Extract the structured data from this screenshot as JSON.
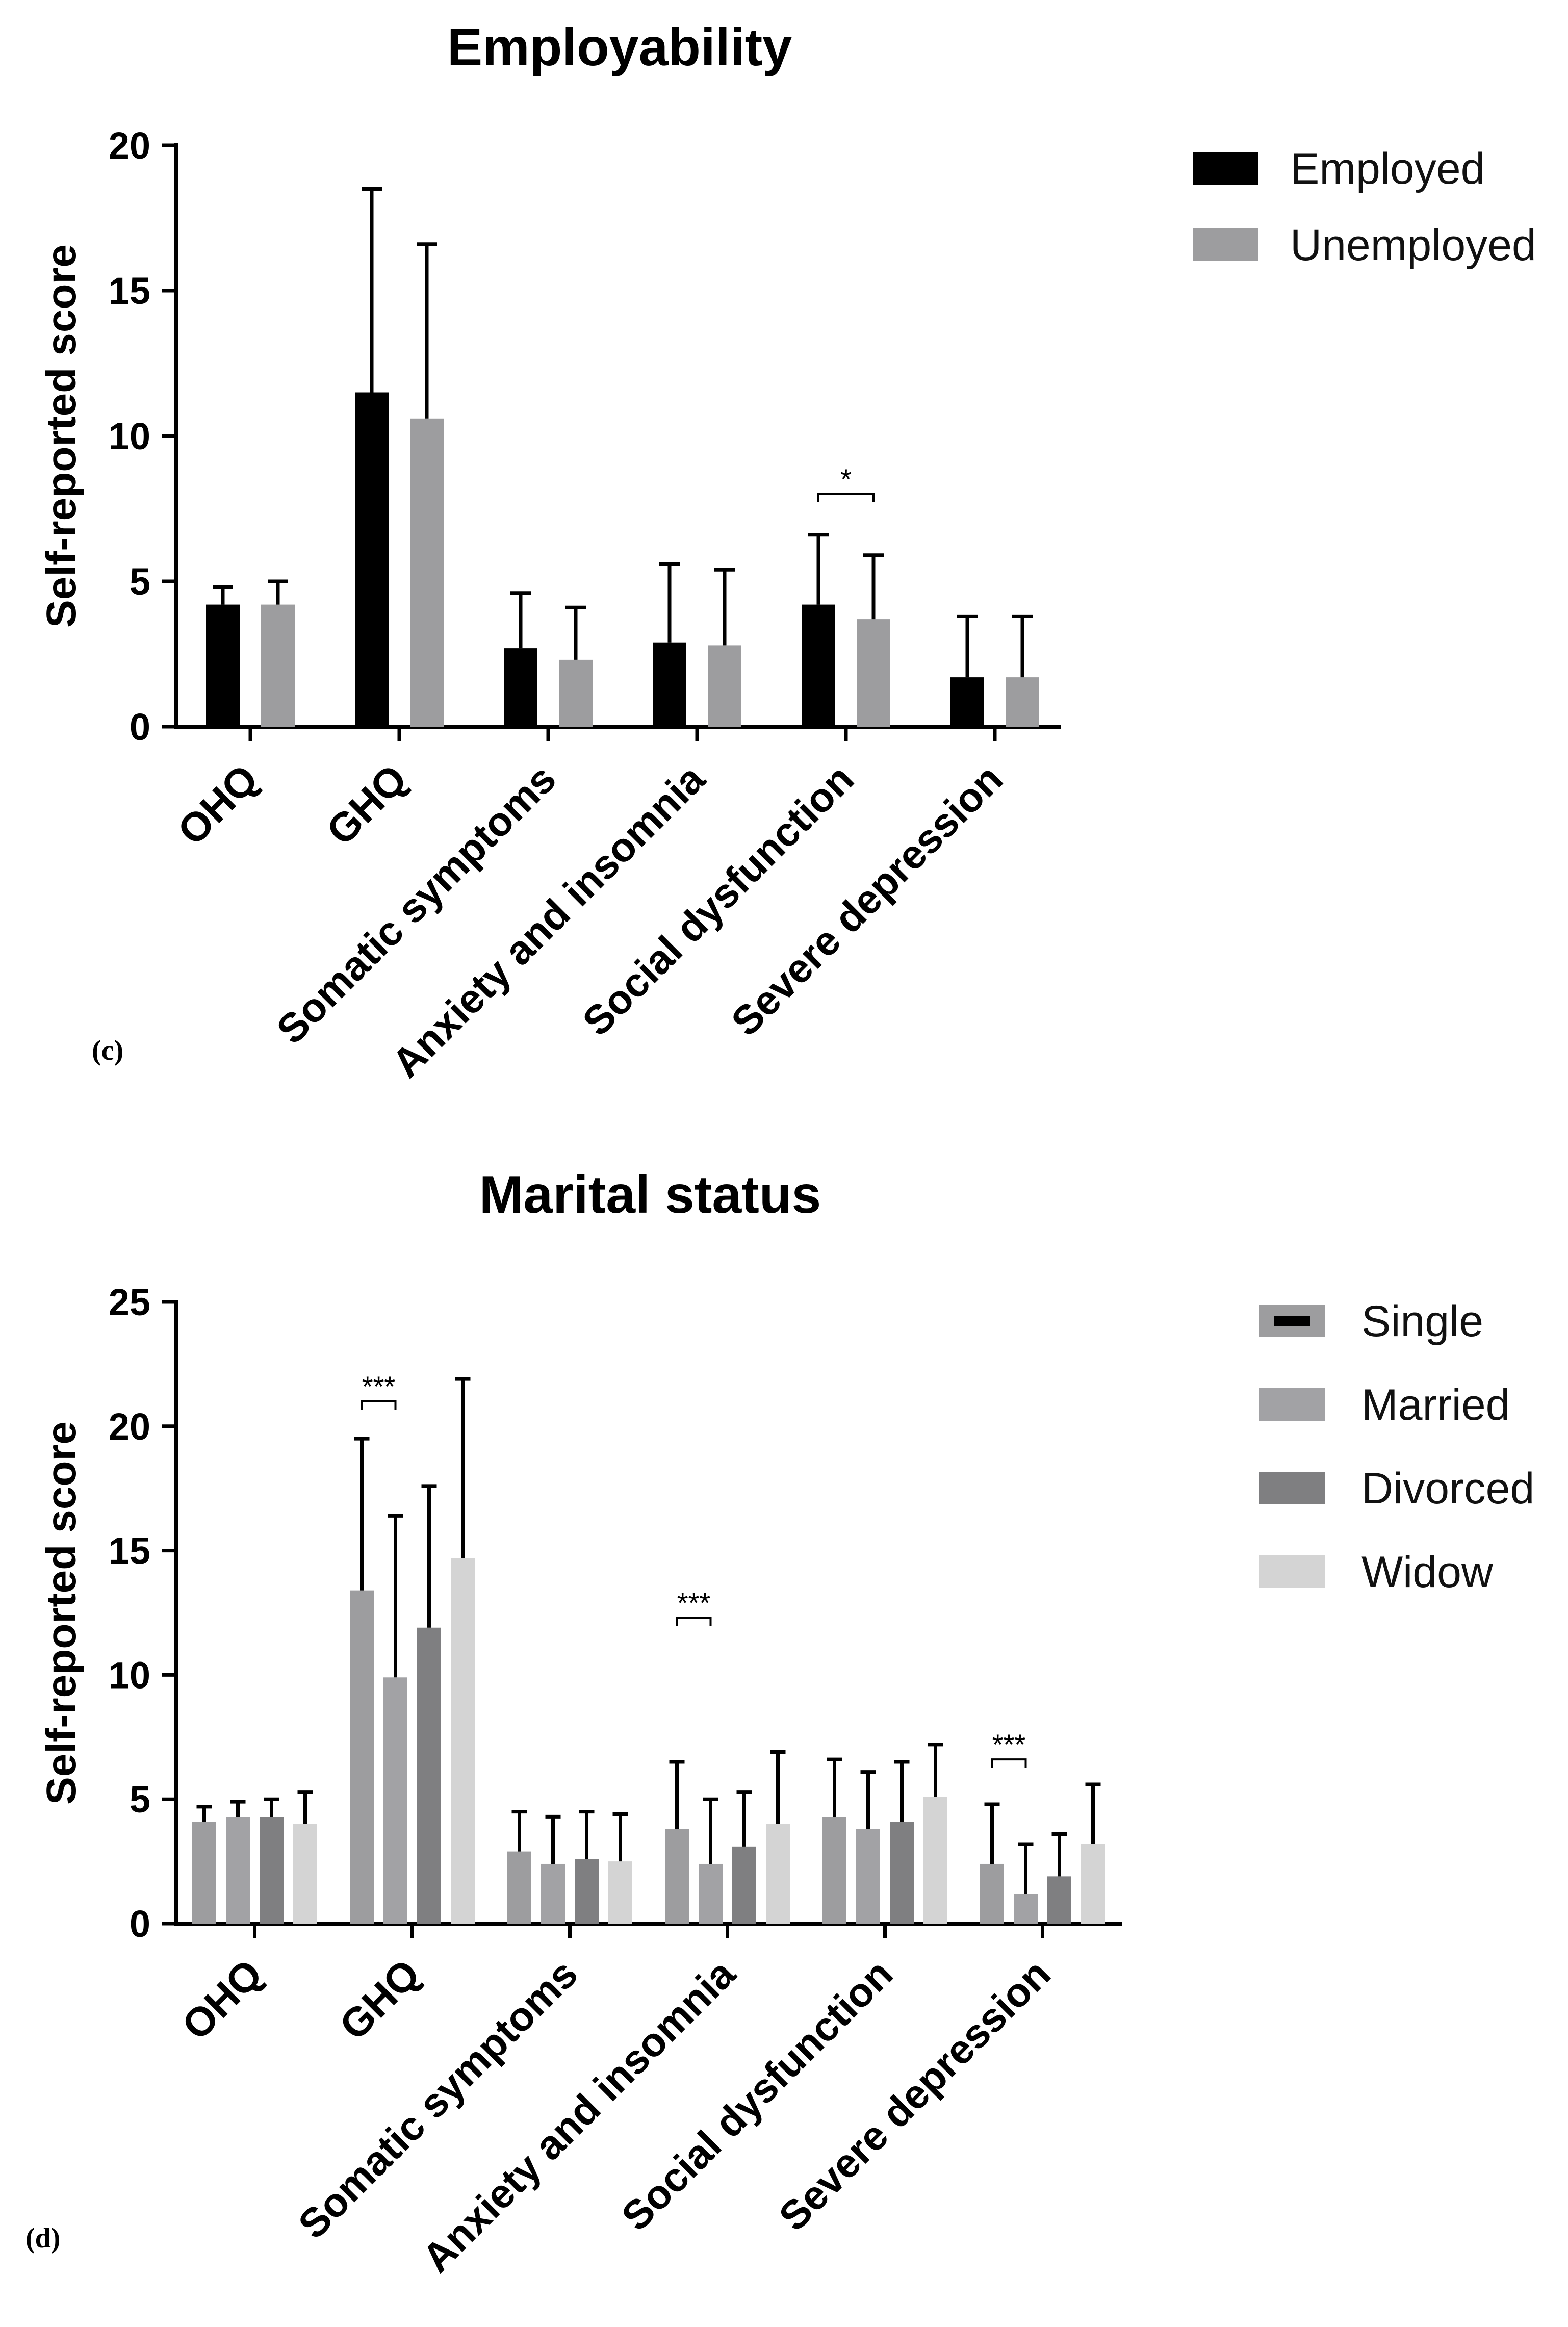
{
  "chart_data": [
    {
      "type": "bar",
      "panel": "(c)",
      "title": "Employability",
      "xlabel": "",
      "ylabel": "Self-reported score",
      "ylim": [
        0,
        20
      ],
      "yticks": [
        0,
        5,
        10,
        15,
        20
      ],
      "categories": [
        "OHQ",
        "GHQ",
        "Somatic symptoms",
        "Anxiety and insomnia",
        "Social dysfunction",
        "Severe depression"
      ],
      "legend_position": "top-right",
      "series": [
        {
          "name": "Employed",
          "color": "#000000",
          "values": [
            4.2,
            11.5,
            2.7,
            2.9,
            4.2,
            1.7
          ],
          "errors": [
            0.6,
            7.0,
            1.9,
            2.7,
            2.4,
            2.1
          ]
        },
        {
          "name": "Unemployed",
          "color": "#9d9d9f",
          "values": [
            4.2,
            10.6,
            2.3,
            2.8,
            3.7,
            1.7
          ],
          "errors": [
            0.8,
            6.0,
            1.8,
            2.6,
            2.2,
            2.1
          ]
        }
      ],
      "annotations": [
        {
          "text": "*",
          "category": "Social dysfunction",
          "from_series": 0,
          "to_series": 1,
          "y": 8.0
        }
      ]
    },
    {
      "type": "bar",
      "panel": "(d)",
      "title": "Marital status",
      "xlabel": "",
      "ylabel": "Self-reported score",
      "ylim": [
        0,
        25
      ],
      "yticks": [
        0,
        5,
        10,
        15,
        20,
        25
      ],
      "categories": [
        "OHQ",
        "GHQ",
        "Somatic symptoms",
        "Anxiety and insomnia",
        "Social dysfunction",
        "Severe depression"
      ],
      "legend_position": "right",
      "series": [
        {
          "name": "Single",
          "color": "#9d9d9f",
          "values": [
            4.1,
            13.4,
            2.9,
            3.8,
            4.3,
            2.4
          ],
          "errors": [
            0.6,
            6.1,
            1.6,
            2.7,
            2.3,
            2.4
          ]
        },
        {
          "name": "Married",
          "color": "#a2a2a5",
          "values": [
            4.3,
            9.9,
            2.4,
            2.4,
            3.8,
            1.2
          ],
          "errors": [
            0.6,
            6.5,
            1.9,
            2.6,
            2.3,
            2.0
          ]
        },
        {
          "name": "Divorced",
          "color": "#7f7f81",
          "values": [
            4.3,
            11.9,
            2.6,
            3.1,
            4.1,
            1.9
          ],
          "errors": [
            0.7,
            5.7,
            1.9,
            2.2,
            2.4,
            1.7
          ]
        },
        {
          "name": "Widow",
          "color": "#d4d4d4",
          "values": [
            4.0,
            14.7,
            2.5,
            4.0,
            5.1,
            3.2
          ],
          "errors": [
            1.3,
            7.2,
            1.9,
            2.9,
            2.1,
            2.4
          ]
        }
      ],
      "annotations": [
        {
          "text": "***",
          "category": "GHQ",
          "from_series": 0,
          "to_series": 1,
          "y": 21.0
        },
        {
          "text": "***",
          "category": "Anxiety and insomnia",
          "from_series": 0,
          "to_series": 1,
          "y": 12.3
        },
        {
          "text": "***",
          "category": "Severe depression",
          "from_series": 0,
          "to_series": 1,
          "y": 6.6
        }
      ]
    }
  ]
}
